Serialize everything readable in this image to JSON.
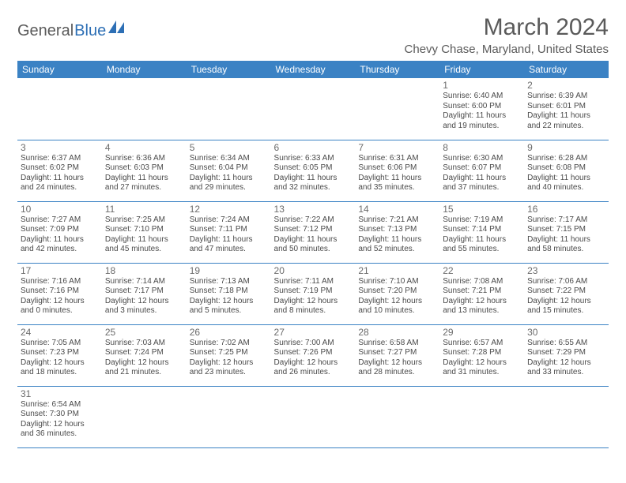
{
  "logo": {
    "part1": "General",
    "part2": "Blue"
  },
  "title": "March 2024",
  "location": "Chevy Chase, Maryland, United States",
  "colors": {
    "header_bg": "#3b82c4",
    "header_fg": "#ffffff",
    "rule": "#3b82c4",
    "logo_blue": "#2d6fb5"
  },
  "daynames": [
    "Sunday",
    "Monday",
    "Tuesday",
    "Wednesday",
    "Thursday",
    "Friday",
    "Saturday"
  ],
  "weeks": [
    [
      null,
      null,
      null,
      null,
      null,
      {
        "n": "1",
        "sr": "Sunrise: 6:40 AM",
        "ss": "Sunset: 6:00 PM",
        "d1": "Daylight: 11 hours",
        "d2": "and 19 minutes."
      },
      {
        "n": "2",
        "sr": "Sunrise: 6:39 AM",
        "ss": "Sunset: 6:01 PM",
        "d1": "Daylight: 11 hours",
        "d2": "and 22 minutes."
      }
    ],
    [
      {
        "n": "3",
        "sr": "Sunrise: 6:37 AM",
        "ss": "Sunset: 6:02 PM",
        "d1": "Daylight: 11 hours",
        "d2": "and 24 minutes."
      },
      {
        "n": "4",
        "sr": "Sunrise: 6:36 AM",
        "ss": "Sunset: 6:03 PM",
        "d1": "Daylight: 11 hours",
        "d2": "and 27 minutes."
      },
      {
        "n": "5",
        "sr": "Sunrise: 6:34 AM",
        "ss": "Sunset: 6:04 PM",
        "d1": "Daylight: 11 hours",
        "d2": "and 29 minutes."
      },
      {
        "n": "6",
        "sr": "Sunrise: 6:33 AM",
        "ss": "Sunset: 6:05 PM",
        "d1": "Daylight: 11 hours",
        "d2": "and 32 minutes."
      },
      {
        "n": "7",
        "sr": "Sunrise: 6:31 AM",
        "ss": "Sunset: 6:06 PM",
        "d1": "Daylight: 11 hours",
        "d2": "and 35 minutes."
      },
      {
        "n": "8",
        "sr": "Sunrise: 6:30 AM",
        "ss": "Sunset: 6:07 PM",
        "d1": "Daylight: 11 hours",
        "d2": "and 37 minutes."
      },
      {
        "n": "9",
        "sr": "Sunrise: 6:28 AM",
        "ss": "Sunset: 6:08 PM",
        "d1": "Daylight: 11 hours",
        "d2": "and 40 minutes."
      }
    ],
    [
      {
        "n": "10",
        "sr": "Sunrise: 7:27 AM",
        "ss": "Sunset: 7:09 PM",
        "d1": "Daylight: 11 hours",
        "d2": "and 42 minutes."
      },
      {
        "n": "11",
        "sr": "Sunrise: 7:25 AM",
        "ss": "Sunset: 7:10 PM",
        "d1": "Daylight: 11 hours",
        "d2": "and 45 minutes."
      },
      {
        "n": "12",
        "sr": "Sunrise: 7:24 AM",
        "ss": "Sunset: 7:11 PM",
        "d1": "Daylight: 11 hours",
        "d2": "and 47 minutes."
      },
      {
        "n": "13",
        "sr": "Sunrise: 7:22 AM",
        "ss": "Sunset: 7:12 PM",
        "d1": "Daylight: 11 hours",
        "d2": "and 50 minutes."
      },
      {
        "n": "14",
        "sr": "Sunrise: 7:21 AM",
        "ss": "Sunset: 7:13 PM",
        "d1": "Daylight: 11 hours",
        "d2": "and 52 minutes."
      },
      {
        "n": "15",
        "sr": "Sunrise: 7:19 AM",
        "ss": "Sunset: 7:14 PM",
        "d1": "Daylight: 11 hours",
        "d2": "and 55 minutes."
      },
      {
        "n": "16",
        "sr": "Sunrise: 7:17 AM",
        "ss": "Sunset: 7:15 PM",
        "d1": "Daylight: 11 hours",
        "d2": "and 58 minutes."
      }
    ],
    [
      {
        "n": "17",
        "sr": "Sunrise: 7:16 AM",
        "ss": "Sunset: 7:16 PM",
        "d1": "Daylight: 12 hours",
        "d2": "and 0 minutes."
      },
      {
        "n": "18",
        "sr": "Sunrise: 7:14 AM",
        "ss": "Sunset: 7:17 PM",
        "d1": "Daylight: 12 hours",
        "d2": "and 3 minutes."
      },
      {
        "n": "19",
        "sr": "Sunrise: 7:13 AM",
        "ss": "Sunset: 7:18 PM",
        "d1": "Daylight: 12 hours",
        "d2": "and 5 minutes."
      },
      {
        "n": "20",
        "sr": "Sunrise: 7:11 AM",
        "ss": "Sunset: 7:19 PM",
        "d1": "Daylight: 12 hours",
        "d2": "and 8 minutes."
      },
      {
        "n": "21",
        "sr": "Sunrise: 7:10 AM",
        "ss": "Sunset: 7:20 PM",
        "d1": "Daylight: 12 hours",
        "d2": "and 10 minutes."
      },
      {
        "n": "22",
        "sr": "Sunrise: 7:08 AM",
        "ss": "Sunset: 7:21 PM",
        "d1": "Daylight: 12 hours",
        "d2": "and 13 minutes."
      },
      {
        "n": "23",
        "sr": "Sunrise: 7:06 AM",
        "ss": "Sunset: 7:22 PM",
        "d1": "Daylight: 12 hours",
        "d2": "and 15 minutes."
      }
    ],
    [
      {
        "n": "24",
        "sr": "Sunrise: 7:05 AM",
        "ss": "Sunset: 7:23 PM",
        "d1": "Daylight: 12 hours",
        "d2": "and 18 minutes."
      },
      {
        "n": "25",
        "sr": "Sunrise: 7:03 AM",
        "ss": "Sunset: 7:24 PM",
        "d1": "Daylight: 12 hours",
        "d2": "and 21 minutes."
      },
      {
        "n": "26",
        "sr": "Sunrise: 7:02 AM",
        "ss": "Sunset: 7:25 PM",
        "d1": "Daylight: 12 hours",
        "d2": "and 23 minutes."
      },
      {
        "n": "27",
        "sr": "Sunrise: 7:00 AM",
        "ss": "Sunset: 7:26 PM",
        "d1": "Daylight: 12 hours",
        "d2": "and 26 minutes."
      },
      {
        "n": "28",
        "sr": "Sunrise: 6:58 AM",
        "ss": "Sunset: 7:27 PM",
        "d1": "Daylight: 12 hours",
        "d2": "and 28 minutes."
      },
      {
        "n": "29",
        "sr": "Sunrise: 6:57 AM",
        "ss": "Sunset: 7:28 PM",
        "d1": "Daylight: 12 hours",
        "d2": "and 31 minutes."
      },
      {
        "n": "30",
        "sr": "Sunrise: 6:55 AM",
        "ss": "Sunset: 7:29 PM",
        "d1": "Daylight: 12 hours",
        "d2": "and 33 minutes."
      }
    ],
    [
      {
        "n": "31",
        "sr": "Sunrise: 6:54 AM",
        "ss": "Sunset: 7:30 PM",
        "d1": "Daylight: 12 hours",
        "d2": "and 36 minutes."
      },
      null,
      null,
      null,
      null,
      null,
      null
    ]
  ]
}
